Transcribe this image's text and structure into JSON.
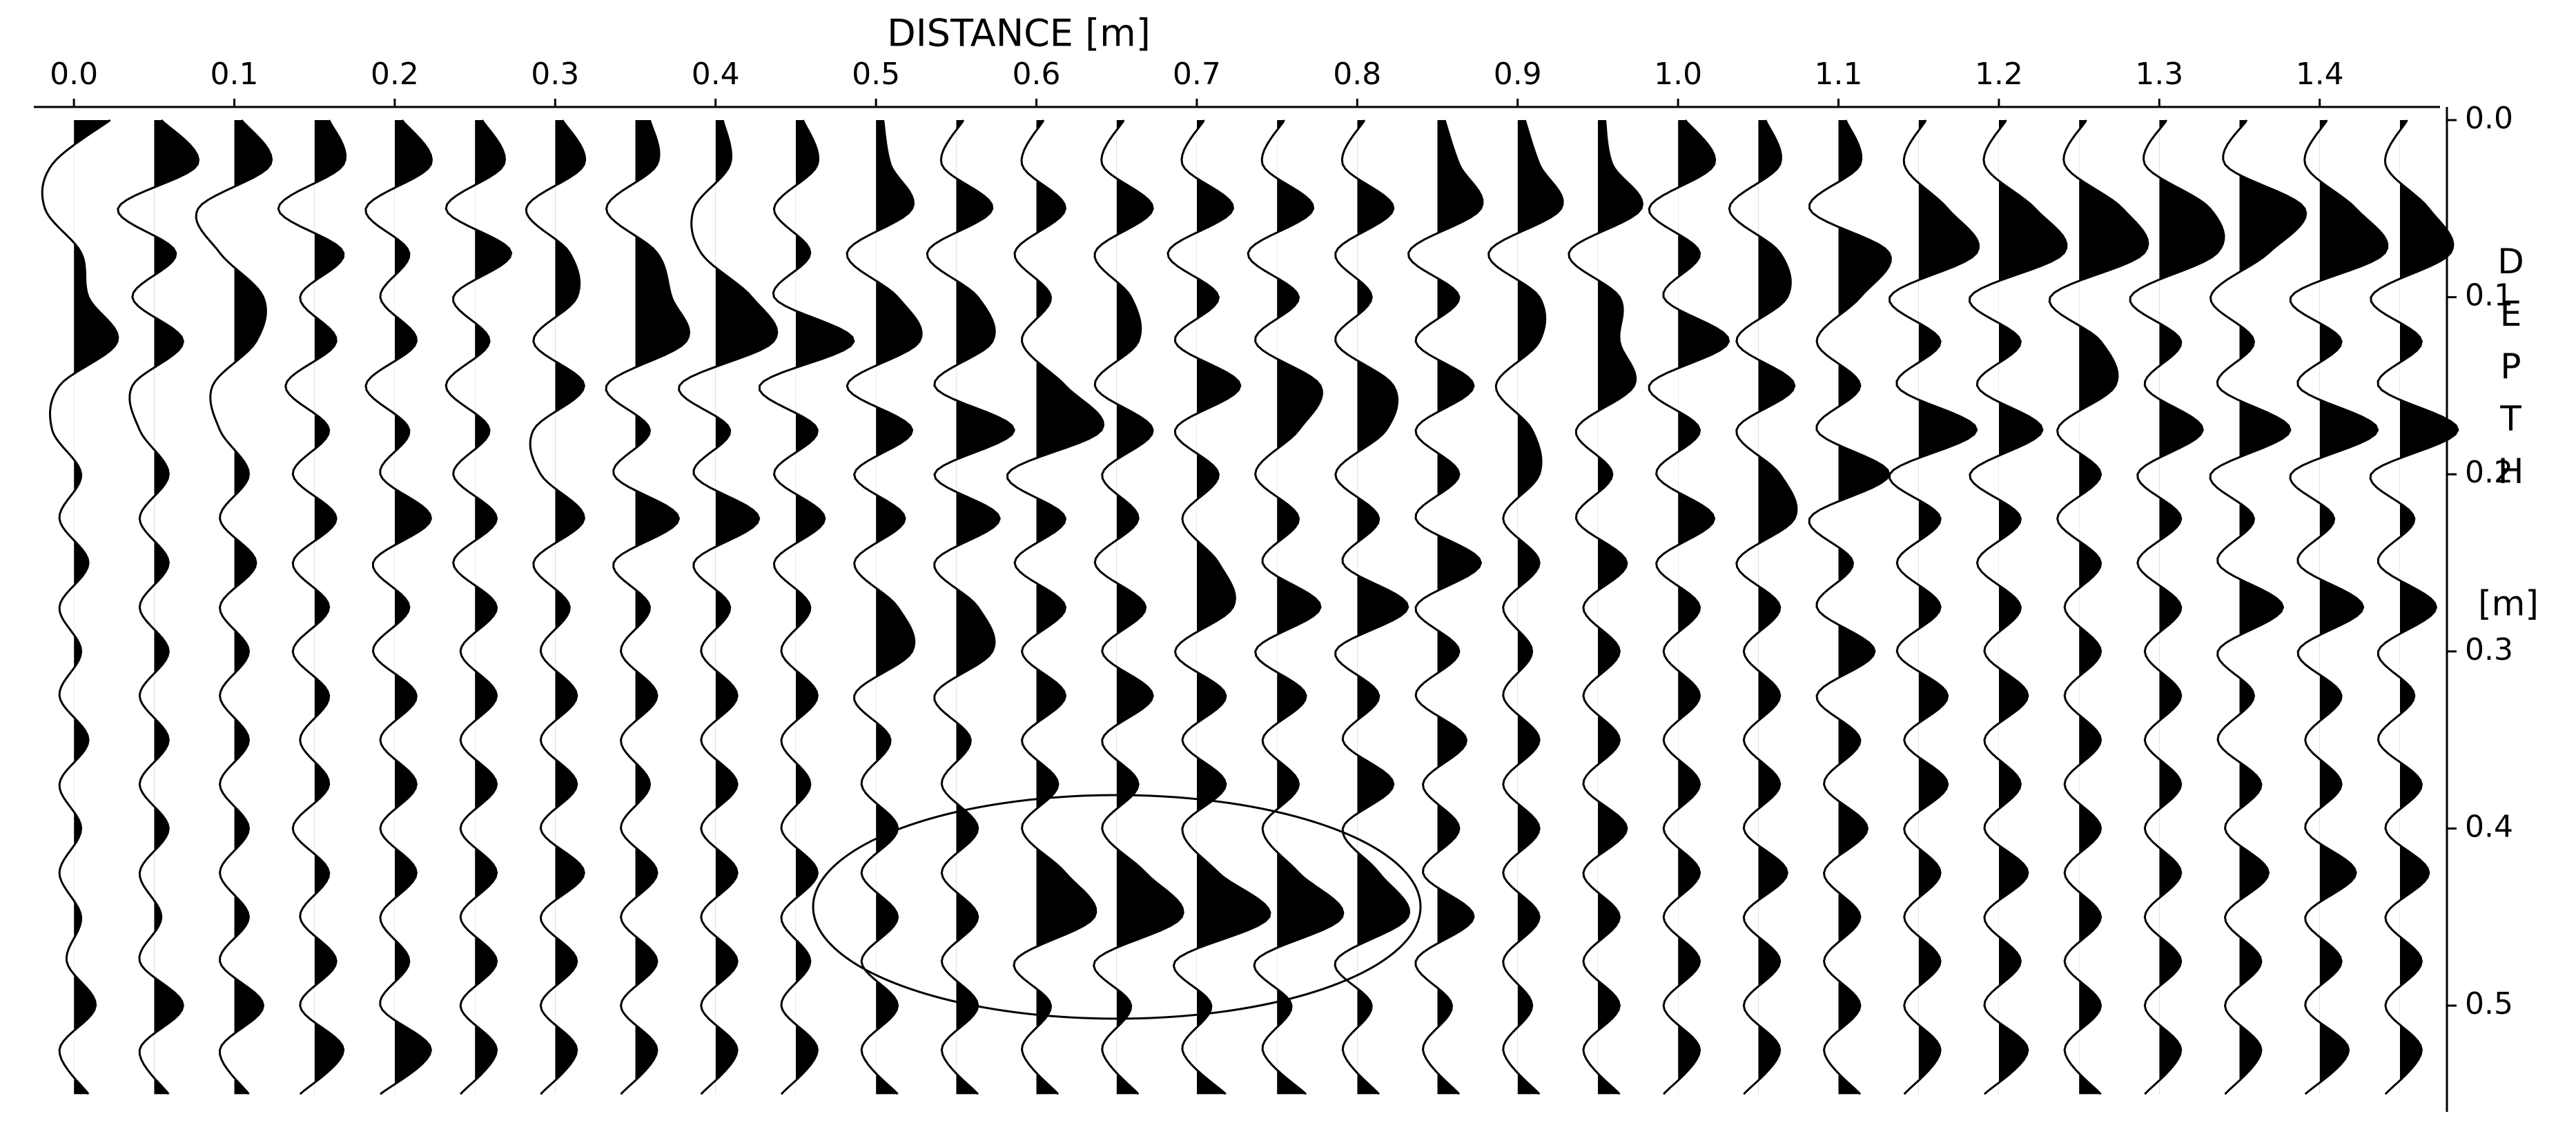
{
  "chart_data": {
    "type": "wiggle",
    "title": "DISTANCE [m]",
    "ylabel": "DEPTH",
    "yunit": "[m]",
    "color": "#000000",
    "xlim": [
      -0.025,
      1.475
    ],
    "xticks": [
      {
        "value": 0,
        "label": "0.0"
      },
      0.1,
      0.2,
      0.3,
      0.4,
      0.5,
      0.6,
      0.7,
      0.8,
      0.9,
      {
        "value": 1,
        "label": "1.0"
      },
      1.1,
      1.2,
      1.3,
      1.4
    ],
    "ylim": [
      0,
      0.56
    ],
    "yticks": [
      {
        "value": 0,
        "label": "0.0"
      },
      0.1,
      0.2,
      0.3,
      0.4,
      0.5
    ],
    "depths": [
      0,
      0.025,
      0.05,
      0.075,
      0.1,
      0.125,
      0.15,
      0.175,
      0.2,
      0.225,
      0.25,
      0.275,
      0.3,
      0.325,
      0.35,
      0.375,
      0.4,
      0.425,
      0.45,
      0.475,
      0.5,
      0.525,
      0.55
    ],
    "series": [
      {
        "x": 0.0,
        "values": [
          0.5,
          -0.3,
          -0.4,
          0.1,
          0.2,
          0.6,
          -0.2,
          -0.3,
          0.1,
          -0.2,
          0.2,
          -0.2,
          0.1,
          -0.2,
          0.2,
          -0.2,
          0.1,
          -0.2,
          0.1,
          -0.1,
          0.3,
          -0.2,
          0.2
        ]
      },
      {
        "x": 0.05,
        "values": [
          0.1,
          0.6,
          -0.5,
          0.3,
          -0.3,
          0.4,
          -0.3,
          -0.2,
          0.2,
          -0.2,
          0.2,
          -0.2,
          0.2,
          -0.2,
          0.2,
          -0.2,
          0.2,
          -0.2,
          0.1,
          -0.2,
          0.4,
          -0.2,
          0.2
        ]
      },
      {
        "x": 0.1,
        "values": [
          0.1,
          0.5,
          -0.5,
          -0.2,
          0.4,
          0.3,
          -0.3,
          -0.2,
          0.2,
          -0.2,
          0.3,
          -0.2,
          0.2,
          -0.2,
          0.2,
          -0.2,
          0.2,
          -0.2,
          0.2,
          -0.2,
          0.4,
          -0.2,
          0.2
        ]
      },
      {
        "x": 0.15,
        "values": [
          0.2,
          0.4,
          -0.5,
          0.4,
          -0.2,
          0.3,
          -0.4,
          0.2,
          -0.3,
          0.3,
          -0.3,
          0.2,
          -0.3,
          0.2,
          -0.2,
          0.2,
          -0.3,
          0.2,
          -0.2,
          0.3,
          -0.2,
          0.4,
          -0.2
        ]
      },
      {
        "x": 0.2,
        "values": [
          0.1,
          0.5,
          -0.4,
          0.2,
          -0.2,
          0.3,
          -0.4,
          0.2,
          -0.2,
          0.5,
          -0.3,
          0.2,
          -0.3,
          0.3,
          -0.2,
          0.3,
          -0.2,
          0.3,
          -0.2,
          0.2,
          -0.2,
          0.5,
          -0.2
        ]
      },
      {
        "x": 0.25,
        "values": [
          0.1,
          0.4,
          -0.4,
          0.5,
          -0.3,
          0.2,
          -0.4,
          0.2,
          -0.3,
          0.3,
          -0.3,
          0.3,
          -0.2,
          0.3,
          -0.2,
          0.3,
          -0.2,
          0.3,
          -0.2,
          0.3,
          -0.2,
          0.3,
          -0.2
        ]
      },
      {
        "x": 0.3,
        "values": [
          0.1,
          0.4,
          -0.4,
          0.2,
          0.3,
          -0.3,
          0.4,
          -0.3,
          -0.2,
          0.4,
          -0.3,
          0.2,
          -0.2,
          0.3,
          -0.2,
          0.3,
          -0.2,
          0.4,
          -0.2,
          0.3,
          -0.2,
          0.3,
          -0.2
        ]
      },
      {
        "x": 0.35,
        "values": [
          0.2,
          0.3,
          -0.4,
          0.3,
          0.5,
          0.7,
          -0.4,
          0.2,
          -0.3,
          0.6,
          -0.3,
          0.2,
          -0.2,
          0.3,
          -0.2,
          0.2,
          -0.2,
          0.3,
          -0.2,
          0.3,
          -0.2,
          0.3,
          -0.2
        ]
      },
      {
        "x": 0.4,
        "values": [
          0.1,
          0.2,
          -0.3,
          -0.2,
          0.5,
          0.8,
          -0.5,
          0.2,
          -0.3,
          0.6,
          -0.3,
          0.2,
          -0.2,
          0.3,
          -0.2,
          0.3,
          -0.2,
          0.3,
          -0.2,
          0.3,
          -0.2,
          0.3,
          -0.2
        ]
      },
      {
        "x": 0.45,
        "values": [
          0.1,
          0.3,
          -0.3,
          0.2,
          -0.3,
          0.8,
          -0.5,
          0.3,
          -0.3,
          0.4,
          -0.3,
          0.2,
          -0.2,
          0.3,
          -0.2,
          0.2,
          -0.2,
          0.3,
          -0.2,
          0.2,
          -0.2,
          0.3,
          -0.2
        ]
      },
      {
        "x": 0.5,
        "values": [
          0.1,
          0.2,
          0.5,
          -0.4,
          0.3,
          0.6,
          -0.4,
          0.5,
          -0.3,
          0.4,
          -0.3,
          0.3,
          0.5,
          -0.3,
          0.2,
          -0.2,
          0.3,
          -0.2,
          0.3,
          -0.2,
          0.3,
          -0.2,
          0.3
        ]
      },
      {
        "x": 0.55,
        "values": [
          0.1,
          -0.2,
          0.5,
          -0.4,
          0.3,
          0.5,
          -0.3,
          0.8,
          -0.3,
          0.6,
          -0.3,
          0.3,
          0.5,
          -0.3,
          0.2,
          -0.2,
          0.3,
          -0.2,
          0.3,
          -0.2,
          0.3,
          -0.2,
          0.3
        ]
      },
      {
        "x": 0.6,
        "values": [
          0.1,
          -0.2,
          0.4,
          -0.3,
          0.2,
          -0.2,
          0.4,
          0.9,
          -0.4,
          0.4,
          -0.3,
          0.4,
          -0.2,
          0.4,
          -0.2,
          0.3,
          -0.2,
          0.4,
          0.8,
          -0.3,
          0.2,
          -0.2,
          0.3
        ]
      },
      {
        "x": 0.65,
        "values": [
          0.1,
          -0.2,
          0.5,
          -0.3,
          0.2,
          0.3,
          -0.3,
          0.5,
          -0.2,
          0.3,
          -0.3,
          0.4,
          -0.2,
          0.5,
          -0.2,
          0.3,
          -0.2,
          0.4,
          0.9,
          -0.3,
          0.2,
          -0.2,
          0.3
        ]
      },
      {
        "x": 0.7,
        "values": [
          0.1,
          -0.2,
          0.5,
          -0.4,
          0.3,
          -0.3,
          0.6,
          -0.3,
          0.3,
          -0.2,
          0.3,
          0.5,
          -0.3,
          0.4,
          -0.2,
          0.4,
          -0.2,
          0.3,
          1.0,
          -0.3,
          0.2,
          -0.2,
          0.4
        ]
      },
      {
        "x": 0.75,
        "values": [
          0.1,
          -0.2,
          0.5,
          -0.4,
          0.3,
          -0.3,
          0.6,
          0.3,
          -0.3,
          0.3,
          -0.2,
          0.6,
          -0.3,
          0.4,
          -0.2,
          0.3,
          -0.2,
          0.3,
          0.9,
          -0.3,
          0.2,
          -0.2,
          0.4
        ]
      },
      {
        "x": 0.8,
        "values": [
          0.1,
          -0.2,
          0.5,
          -0.3,
          0.2,
          -0.3,
          0.5,
          0.4,
          -0.3,
          0.3,
          -0.2,
          0.7,
          -0.3,
          0.3,
          -0.2,
          0.5,
          -0.2,
          0.3,
          0.7,
          -0.3,
          0.2,
          -0.2,
          0.3
        ]
      },
      {
        "x": 0.85,
        "values": [
          0.1,
          0.3,
          0.6,
          -0.4,
          0.3,
          -0.3,
          0.5,
          -0.3,
          0.3,
          -0.3,
          0.6,
          -0.3,
          0.3,
          -0.3,
          0.4,
          -0.2,
          0.3,
          -0.2,
          0.5,
          -0.3,
          0.2,
          -0.2,
          0.3
        ]
      },
      {
        "x": 0.9,
        "values": [
          0.1,
          0.3,
          0.6,
          -0.4,
          0.3,
          0.3,
          -0.3,
          0.2,
          0.3,
          -0.2,
          0.3,
          -0.2,
          0.2,
          -0.2,
          0.3,
          -0.2,
          0.3,
          -0.2,
          0.3,
          -0.2,
          0.2,
          -0.2,
          0.3
        ]
      },
      {
        "x": 0.95,
        "values": [
          0.1,
          0.2,
          0.6,
          -0.4,
          0.3,
          0.3,
          0.5,
          -0.3,
          0.2,
          -0.3,
          0.4,
          -0.2,
          0.3,
          -0.2,
          0.3,
          -0.2,
          0.4,
          -0.2,
          0.3,
          -0.2,
          0.3,
          -0.2,
          0.3
        ]
      },
      {
        "x": 1.0,
        "values": [
          0.1,
          0.5,
          -0.4,
          0.3,
          -0.2,
          0.7,
          -0.4,
          0.3,
          -0.3,
          0.5,
          -0.3,
          0.3,
          -0.2,
          0.3,
          -0.2,
          0.3,
          -0.2,
          0.3,
          -0.2,
          0.3,
          -0.2,
          0.3,
          -0.2
        ]
      },
      {
        "x": 1.05,
        "values": [
          0.1,
          0.3,
          -0.4,
          0.3,
          0.4,
          -0.3,
          0.5,
          -0.3,
          0.3,
          0.5,
          -0.3,
          0.3,
          -0.2,
          0.3,
          -0.2,
          0.3,
          -0.2,
          0.4,
          -0.2,
          0.3,
          -0.2,
          0.3,
          -0.2
        ]
      },
      {
        "x": 1.1,
        "values": [
          0.1,
          0.3,
          -0.4,
          0.7,
          0.3,
          -0.3,
          0.3,
          -0.3,
          0.7,
          -0.4,
          0.2,
          -0.3,
          0.5,
          -0.3,
          0.3,
          -0.2,
          0.4,
          -0.2,
          0.3,
          -0.2,
          0.3,
          -0.2,
          0.3
        ]
      },
      {
        "x": 1.15,
        "values": [
          0.1,
          -0.2,
          0.4,
          0.8,
          -0.4,
          0.3,
          -0.3,
          0.8,
          -0.4,
          0.3,
          -0.3,
          0.3,
          -0.3,
          0.4,
          -0.2,
          0.4,
          -0.2,
          0.3,
          -0.2,
          0.3,
          -0.2,
          0.3,
          -0.2
        ]
      },
      {
        "x": 1.2,
        "values": [
          0.1,
          -0.2,
          0.5,
          0.9,
          -0.4,
          0.3,
          -0.3,
          0.6,
          -0.4,
          0.3,
          -0.3,
          0.3,
          -0.2,
          0.4,
          -0.2,
          0.3,
          -0.2,
          0.4,
          -0.2,
          0.3,
          -0.2,
          0.4,
          -0.2
        ]
      },
      {
        "x": 1.25,
        "values": [
          0.1,
          -0.2,
          0.6,
          0.9,
          -0.4,
          0.3,
          0.5,
          -0.3,
          0.3,
          -0.3,
          0.3,
          -0.2,
          0.3,
          -0.2,
          0.3,
          -0.2,
          0.3,
          -0.2,
          0.3,
          -0.2,
          0.3,
          -0.2,
          0.3
        ]
      },
      {
        "x": 1.3,
        "values": [
          0.1,
          -0.2,
          0.7,
          0.8,
          -0.4,
          0.3,
          -0.2,
          0.6,
          -0.3,
          0.3,
          -0.3,
          0.3,
          -0.2,
          0.3,
          -0.2,
          0.3,
          -0.2,
          0.3,
          -0.2,
          0.3,
          -0.2,
          0.3,
          -0.2
        ]
      },
      {
        "x": 1.35,
        "values": [
          0.1,
          -0.2,
          0.9,
          0.4,
          -0.4,
          0.2,
          -0.3,
          0.7,
          -0.4,
          0.2,
          -0.3,
          0.6,
          -0.3,
          0.2,
          -0.3,
          0.3,
          -0.2,
          0.4,
          -0.2,
          0.3,
          -0.2,
          0.3,
          -0.2
        ]
      },
      {
        "x": 1.4,
        "values": [
          0.1,
          -0.2,
          0.5,
          0.9,
          -0.4,
          0.3,
          -0.3,
          0.8,
          -0.4,
          0.2,
          -0.3,
          0.6,
          -0.3,
          0.3,
          -0.2,
          0.3,
          -0.2,
          0.5,
          -0.2,
          0.3,
          -0.2,
          0.4,
          -0.2
        ]
      },
      {
        "x": 1.45,
        "values": [
          0.1,
          -0.2,
          0.4,
          0.7,
          -0.4,
          0.3,
          -0.3,
          0.8,
          -0.4,
          0.2,
          -0.3,
          0.5,
          -0.3,
          0.2,
          -0.3,
          0.3,
          -0.2,
          0.4,
          -0.2,
          0.3,
          -0.2,
          0.3,
          -0.2
        ]
      }
    ]
  }
}
